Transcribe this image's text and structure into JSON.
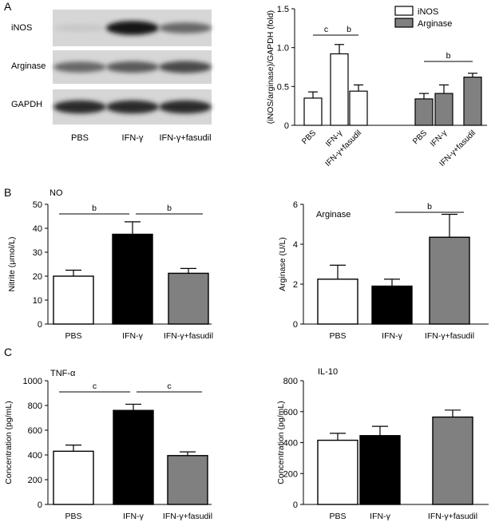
{
  "panels": [
    {
      "label": "A"
    },
    {
      "label": "B"
    },
    {
      "label": "C"
    }
  ],
  "blot": {
    "rows": [
      "iNOS",
      "Arginase",
      "GAPDH"
    ],
    "lanes": [
      "PBS",
      "IFN-γ",
      "IFN-γ+fasudil"
    ],
    "band_intensity": [
      [
        0.1,
        0.95,
        0.55
      ],
      [
        0.55,
        0.62,
        0.7
      ],
      [
        0.85,
        0.85,
        0.85
      ]
    ]
  },
  "chart_data": [
    {
      "id": "fold",
      "type": "bar",
      "title": "",
      "xlabel": "",
      "ylabel": "(iNOS/arginase)/GAPDH (fold)",
      "ylim": [
        0,
        1.5
      ],
      "yticks": [
        "0",
        "0.5",
        "1.0",
        "1.5"
      ],
      "categories": [
        "PBS",
        "IFN-γ",
        "IFN-γ+fasudil"
      ],
      "legend": [
        "iNOS",
        "Arginase"
      ],
      "legend_position": "top-right",
      "series": [
        {
          "name": "iNOS",
          "values": [
            0.35,
            0.92,
            0.44
          ],
          "errors": [
            0.08,
            0.12,
            0.08
          ],
          "color": "#ffffff"
        },
        {
          "name": "Arginase",
          "values": [
            0.34,
            0.41,
            0.62
          ],
          "errors": [
            0.07,
            0.11,
            0.05
          ],
          "color": "#808080"
        }
      ],
      "significance": [
        {
          "label": "c",
          "series": 0,
          "from": 0,
          "to": 1
        },
        {
          "label": "b",
          "series": 0,
          "from": 1,
          "to": 2
        },
        {
          "label": "b",
          "series": 1,
          "from": 0,
          "to": 2
        }
      ]
    },
    {
      "id": "no",
      "type": "bar",
      "title": "NO",
      "xlabel": "",
      "ylabel": "Nitrite (μmol/L)",
      "ylim": [
        0,
        50
      ],
      "yticks": [
        "0",
        "10",
        "20",
        "30",
        "40",
        "50"
      ],
      "categories": [
        "PBS",
        "IFN-γ",
        "IFN-γ+fasudil"
      ],
      "values": [
        20,
        37.5,
        21.2
      ],
      "errors": [
        2.5,
        5.2,
        2.0
      ],
      "colors": [
        "#ffffff",
        "#000000",
        "#808080"
      ],
      "significance": [
        {
          "label": "b",
          "from": 0,
          "to": 1
        },
        {
          "label": "b",
          "from": 1,
          "to": 2
        }
      ]
    },
    {
      "id": "arginase",
      "type": "bar",
      "title": "Arginase",
      "xlabel": "",
      "ylabel": "Arginase (U/L)",
      "ylim": [
        0,
        6
      ],
      "yticks": [
        "0",
        "2",
        "4",
        "6"
      ],
      "categories": [
        "PBS",
        "IFN-γ",
        "IFN-γ+fasudil"
      ],
      "values": [
        2.25,
        1.9,
        4.35
      ],
      "errors": [
        0.7,
        0.35,
        1.15
      ],
      "colors": [
        "#ffffff",
        "#000000",
        "#808080"
      ],
      "significance": [
        {
          "label": "b",
          "from": 1,
          "to": 2
        }
      ]
    },
    {
      "id": "tnf",
      "type": "bar",
      "title": "TNF-α",
      "xlabel": "",
      "ylabel": "Concentration (pg/mL)",
      "ylim": [
        0,
        1000
      ],
      "yticks": [
        "0",
        "200",
        "400",
        "600",
        "800",
        "1000"
      ],
      "categories": [
        "PBS",
        "IFN-γ",
        "IFN-γ+fasudil"
      ],
      "values": [
        430,
        760,
        395
      ],
      "errors": [
        50,
        50,
        30
      ],
      "colors": [
        "#ffffff",
        "#000000",
        "#808080"
      ],
      "significance": [
        {
          "label": "c",
          "from": 0,
          "to": 1
        },
        {
          "label": "c",
          "from": 1,
          "to": 2
        }
      ]
    },
    {
      "id": "il10",
      "type": "bar",
      "title": "IL-10",
      "xlabel": "",
      "ylabel": "Concentration (pg/mL)",
      "ylim": [
        0,
        800
      ],
      "yticks": [
        "0",
        "200",
        "400",
        "600",
        "800"
      ],
      "categories": [
        "PBS",
        "IFN-γ",
        "IFN-γ+fasudil"
      ],
      "values": [
        415,
        445,
        565
      ],
      "errors": [
        45,
        60,
        45
      ],
      "colors": [
        "#ffffff",
        "#000000",
        "#808080"
      ],
      "significance": []
    }
  ]
}
